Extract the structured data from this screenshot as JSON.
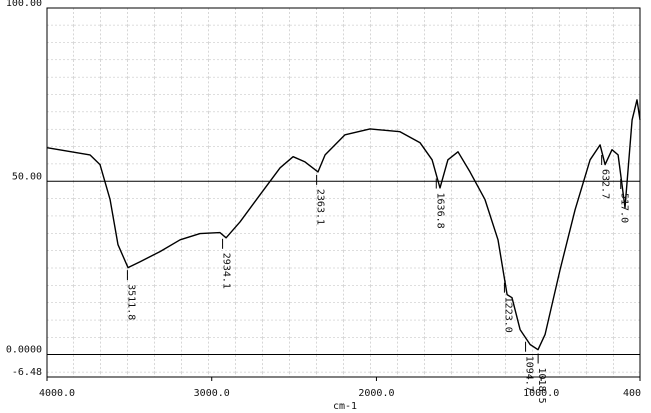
{
  "chart_data": {
    "type": "line",
    "x_label": "cm-1",
    "xlim": [
      4000,
      400
    ],
    "ylim": [
      -6.48,
      100
    ],
    "xticks": [
      {
        "value": 4000,
        "label": "4000.0"
      },
      {
        "value": 3000,
        "label": "3000.0"
      },
      {
        "value": 2000,
        "label": "2000.0"
      },
      {
        "value": 1000,
        "label": "1000.0"
      },
      400
    ],
    "yticks": [
      {
        "value": 100,
        "label": "100.00"
      },
      {
        "value": 50,
        "label": "50.00"
      },
      {
        "value": 0,
        "label": "0.0000"
      },
      -6.48
    ],
    "grid": true,
    "series": [
      {
        "color": "#000000",
        "x": [
          4000,
          3739,
          3678,
          3617,
          3569,
          3508,
          3435,
          3314,
          3192,
          3071,
          2950,
          2913,
          2828,
          2707,
          2585,
          2506,
          2434,
          2355,
          2312,
          2191,
          2039,
          1857,
          1735,
          1662,
          1614,
          1566,
          1505,
          1432,
          1341,
          1262,
          1207,
          1177,
          1128,
          1067,
          1019,
          976,
          885,
          794,
          703,
          642,
          612,
          570,
          533,
          491,
          448,
          418,
          400
        ],
        "values": [
          59.7,
          57.6,
          54.8,
          44.7,
          31.7,
          25.1,
          26.8,
          29.7,
          33.1,
          34.9,
          35.2,
          33.7,
          38.3,
          46.1,
          53.9,
          57.1,
          55.6,
          52.7,
          57.6,
          63.4,
          65.1,
          64.3,
          61.1,
          56.2,
          48.1,
          56.2,
          58.5,
          52.7,
          44.7,
          33.1,
          17.3,
          16.4,
          7.2,
          2.9,
          1.4,
          5.8,
          24.5,
          41.8,
          56.2,
          60.5,
          54.8,
          59.1,
          57.6,
          42.4,
          67.7,
          73.5,
          67.7
        ]
      }
    ],
    "peaks": [
      3511.8,
      2934.1,
      2363.1,
      1636.8,
      {
        "value": 1223,
        "label": "1223.0"
      },
      1094.7,
      1018.5,
      632.7,
      {
        "value": 517,
        "label": "517.0"
      }
    ]
  }
}
